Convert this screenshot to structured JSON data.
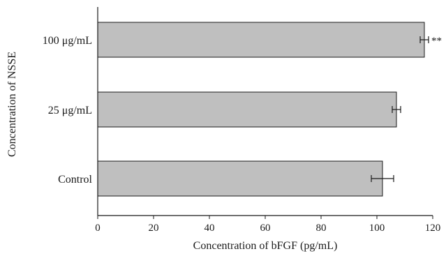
{
  "chart_data": {
    "type": "bar",
    "orientation": "horizontal",
    "categories": [
      "Control",
      "25 μg/mL",
      "100 μg/mL"
    ],
    "values": [
      102,
      107,
      117
    ],
    "errors": [
      4,
      1.5,
      1.5
    ],
    "annotations": [
      "",
      "",
      "**"
    ],
    "xlabel": "Concentration of bFGF (pg/mL)",
    "ylabel": "Concentration of NSSE",
    "xlim": [
      0,
      120
    ],
    "xticks": [
      0,
      20,
      40,
      60,
      80,
      100,
      120
    ],
    "grid": false,
    "bar_color": "#bfbfbf",
    "bar_edge_color": "#1a1a1a"
  }
}
